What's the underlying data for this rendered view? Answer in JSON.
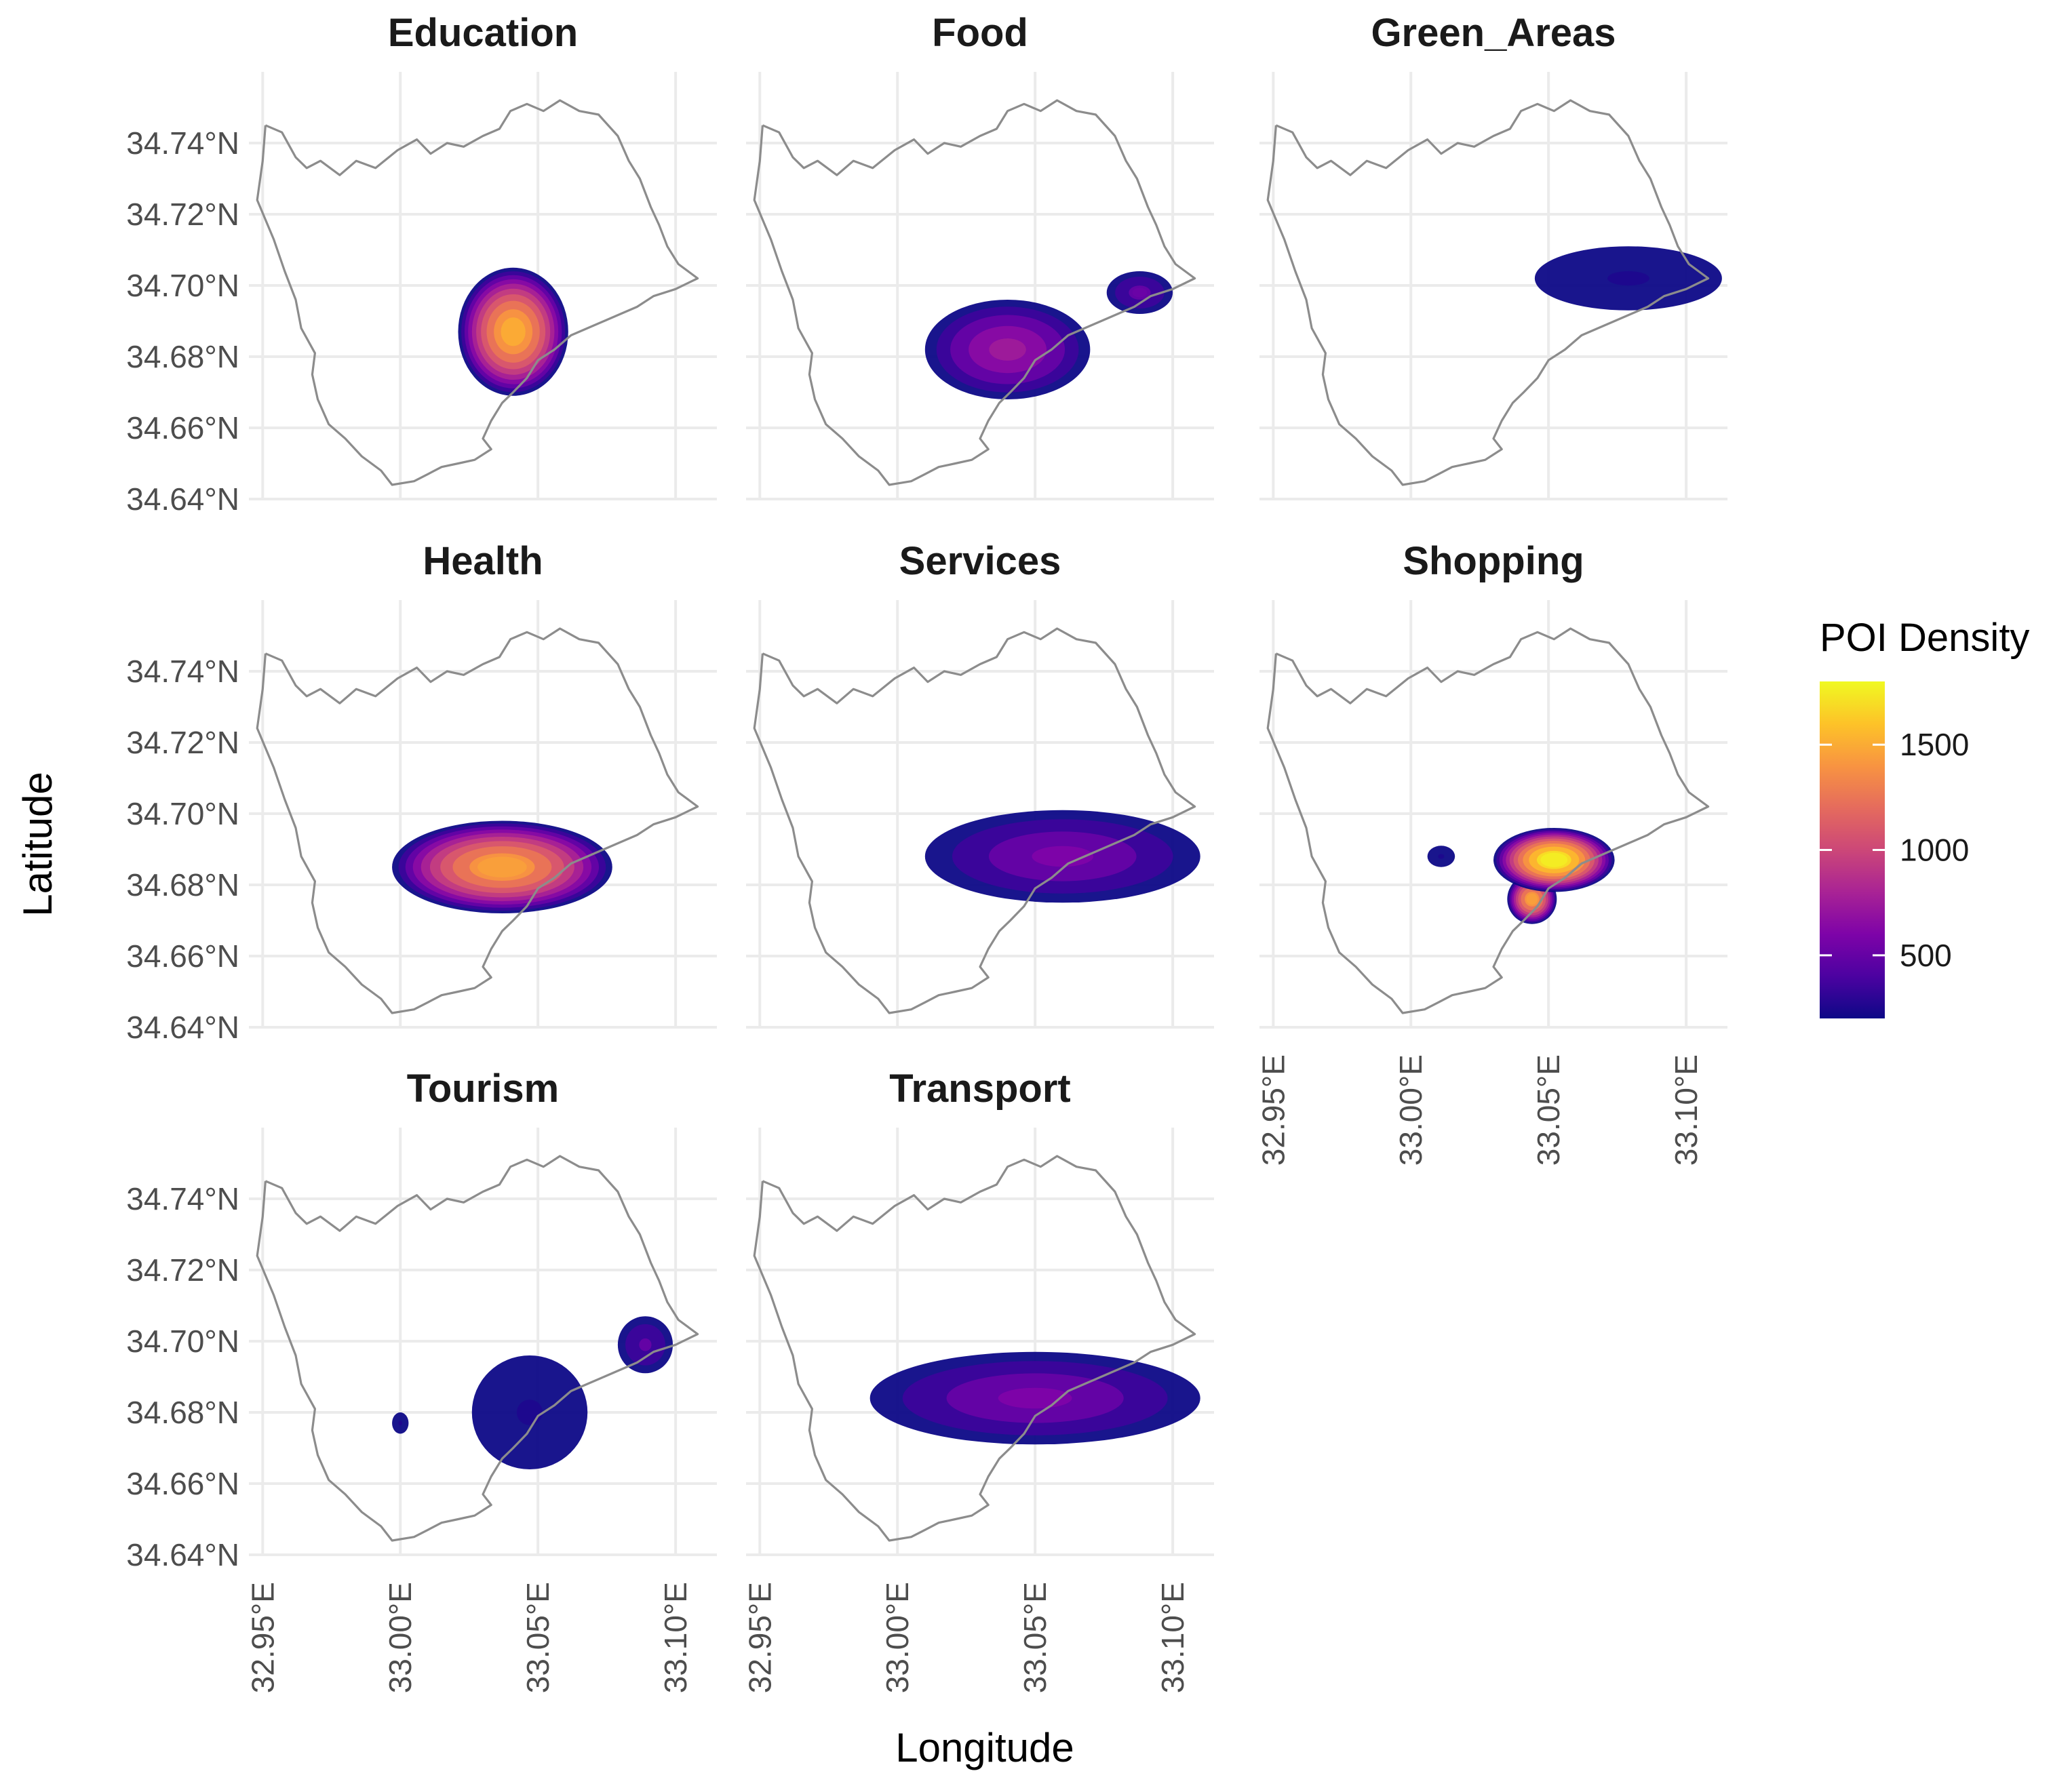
{
  "map": {
    "type": "faceted-density-map",
    "x_axis_title": "Longitude",
    "y_axis_title": "Latitude",
    "x_ticks": [
      "32.95°E",
      "33.00°E",
      "33.05°E",
      "33.10°E"
    ],
    "y_ticks": [
      "34.74°N",
      "34.72°N",
      "34.70°N",
      "34.68°N",
      "34.66°N",
      "34.64°N"
    ],
    "x_tick_values": [
      32.95,
      33.0,
      33.05,
      33.1
    ],
    "y_tick_values": [
      34.74,
      34.72,
      34.7,
      34.68,
      34.66,
      34.64
    ],
    "x_range": [
      32.945,
      33.115
    ],
    "y_range": [
      34.64,
      34.76
    ],
    "legend": {
      "title": "POI Density",
      "ticks": [
        "1500",
        "1000",
        "500"
      ],
      "tick_values": [
        1500,
        1000,
        500
      ],
      "range": [
        200,
        1800
      ],
      "colors": [
        "#0d0887",
        "#4c02a1",
        "#7e03a8",
        "#a92395",
        "#cc4778",
        "#e56b5d",
        "#f89441",
        "#fdc328",
        "#f0f921"
      ]
    },
    "panels": [
      {
        "title": "Education",
        "density": [
          {
            "lon": 33.041,
            "lat": 34.687,
            "spread_lon": 0.02,
            "spread_lat": 0.018,
            "peak": 1500
          }
        ]
      },
      {
        "title": "Food",
        "density": [
          {
            "lon": 33.04,
            "lat": 34.682,
            "spread_lon": 0.03,
            "spread_lat": 0.014,
            "peak": 750
          },
          {
            "lon": 33.088,
            "lat": 34.698,
            "spread_lon": 0.012,
            "spread_lat": 0.006,
            "peak": 520
          }
        ]
      },
      {
        "title": "Green_Areas",
        "density": [
          {
            "lon": 33.079,
            "lat": 34.702,
            "spread_lon": 0.034,
            "spread_lat": 0.009,
            "peak": 250
          }
        ]
      },
      {
        "title": "Health",
        "density": [
          {
            "lon": 33.037,
            "lat": 34.685,
            "spread_lon": 0.04,
            "spread_lat": 0.013,
            "peak": 1450
          }
        ]
      },
      {
        "title": "Services",
        "density": [
          {
            "lon": 33.06,
            "lat": 34.688,
            "spread_lon": 0.05,
            "spread_lat": 0.013,
            "peak": 600
          }
        ]
      },
      {
        "title": "Shopping",
        "density": [
          {
            "lon": 33.044,
            "lat": 34.676,
            "spread_lon": 0.009,
            "spread_lat": 0.007,
            "peak": 1450
          },
          {
            "lon": 33.052,
            "lat": 34.687,
            "spread_lon": 0.022,
            "spread_lat": 0.009,
            "peak": 1750
          },
          {
            "lon": 33.011,
            "lat": 34.688,
            "spread_lon": 0.005,
            "spread_lat": 0.003,
            "peak": 250
          }
        ]
      },
      {
        "title": "Tourism",
        "density": [
          {
            "lon": 33.047,
            "lat": 34.68,
            "spread_lon": 0.021,
            "spread_lat": 0.016,
            "peak": 250
          },
          {
            "lon": 33.089,
            "lat": 34.699,
            "spread_lon": 0.01,
            "spread_lat": 0.008,
            "peak": 500
          },
          {
            "lon": 33.0,
            "lat": 34.677,
            "spread_lon": 0.003,
            "spread_lat": 0.003,
            "peak": 260
          }
        ]
      },
      {
        "title": "Transport",
        "density": [
          {
            "lon": 33.05,
            "lat": 34.684,
            "spread_lon": 0.06,
            "spread_lat": 0.013,
            "peak": 600
          }
        ]
      }
    ],
    "boundary": [
      [
        32.951,
        34.745
      ],
      [
        32.957,
        34.743
      ],
      [
        32.962,
        34.736
      ],
      [
        32.966,
        34.733
      ],
      [
        32.971,
        34.735
      ],
      [
        32.978,
        34.731
      ],
      [
        32.984,
        34.735
      ],
      [
        32.991,
        34.733
      ],
      [
        32.999,
        34.738
      ],
      [
        33.006,
        34.741
      ],
      [
        33.011,
        34.737
      ],
      [
        33.017,
        34.74
      ],
      [
        33.023,
        34.739
      ],
      [
        33.03,
        34.742
      ],
      [
        33.036,
        34.744
      ],
      [
        33.04,
        34.749
      ],
      [
        33.046,
        34.751
      ],
      [
        33.052,
        34.749
      ],
      [
        33.058,
        34.752
      ],
      [
        33.065,
        34.749
      ],
      [
        33.072,
        34.748
      ],
      [
        33.079,
        34.742
      ],
      [
        33.083,
        34.735
      ],
      [
        33.087,
        34.73
      ],
      [
        33.091,
        34.722
      ],
      [
        33.094,
        34.717
      ],
      [
        33.097,
        34.711
      ],
      [
        33.101,
        34.706
      ],
      [
        33.108,
        34.702
      ],
      [
        33.1,
        34.699
      ],
      [
        33.092,
        34.697
      ],
      [
        33.086,
        34.694
      ],
      [
        33.08,
        34.692
      ],
      [
        33.074,
        34.69
      ],
      [
        33.068,
        34.688
      ],
      [
        33.062,
        34.686
      ],
      [
        33.056,
        34.682
      ],
      [
        33.05,
        34.679
      ],
      [
        33.046,
        34.674
      ],
      [
        33.041,
        34.67
      ],
      [
        33.037,
        34.667
      ],
      [
        33.033,
        34.662
      ],
      [
        33.03,
        34.657
      ],
      [
        33.033,
        34.654
      ],
      [
        33.027,
        34.651
      ],
      [
        33.021,
        34.65
      ],
      [
        33.015,
        34.649
      ],
      [
        33.01,
        34.647
      ],
      [
        33.005,
        34.645
      ],
      [
        32.997,
        34.644
      ],
      [
        32.993,
        34.648
      ],
      [
        32.986,
        34.652
      ],
      [
        32.98,
        34.657
      ],
      [
        32.974,
        34.661
      ],
      [
        32.97,
        34.668
      ],
      [
        32.968,
        34.675
      ],
      [
        32.969,
        34.681
      ],
      [
        32.964,
        34.688
      ],
      [
        32.962,
        34.696
      ],
      [
        32.958,
        34.704
      ],
      [
        32.954,
        34.713
      ],
      [
        32.948,
        34.724
      ],
      [
        32.95,
        34.735
      ],
      [
        32.951,
        34.745
      ]
    ]
  }
}
